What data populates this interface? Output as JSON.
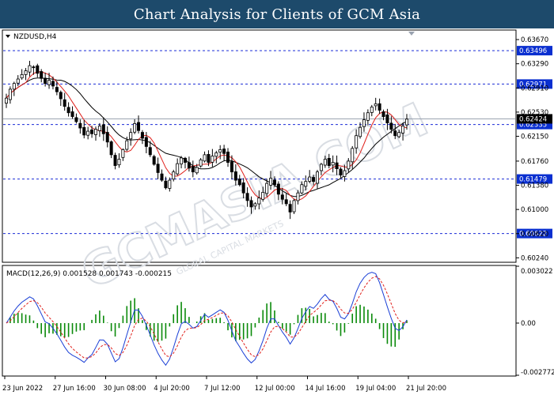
{
  "banner": {
    "title": "Chart Analysis for Clients of GCM Asia"
  },
  "watermark": {
    "text": "GCMASIA.COM",
    "subtext": "GLOBAL CAPITAL MARKETS",
    "color": "#d9dde3"
  },
  "chart_data": {
    "type": "candlestick",
    "symbol_label": "NZDUSD,H4",
    "price_axis": {
      "ylim": [
        0.6017,
        0.6382
      ],
      "ticks": [
        "0.63670",
        "0.63290",
        "0.62910",
        "0.62530",
        "0.62150",
        "0.61760",
        "0.61380",
        "0.61000",
        "0.60620",
        "0.60240"
      ],
      "tick_values": [
        0.6367,
        0.6329,
        0.6291,
        0.6253,
        0.6215,
        0.6176,
        0.6138,
        0.61,
        0.6062,
        0.6024
      ]
    },
    "current_price": {
      "label": "0.62424",
      "value": 0.62424
    },
    "levels": [
      {
        "label": "0.63496",
        "value": 0.63496
      },
      {
        "label": "0.62971",
        "value": 0.62971
      },
      {
        "label": "0.62335",
        "value": 0.62335
      },
      {
        "label": "0.61479",
        "value": 0.61479
      },
      {
        "label": "0.60622",
        "value": 0.60622
      }
    ],
    "time_labels": [
      "23 Jun 2022",
      "27 Jun 16:00",
      "30 Jun 08:00",
      "4 Jul 20:00",
      "7 Jul 12:00",
      "12 Jul 00:00",
      "14 Jul 16:00",
      "19 Jul 04:00",
      "21 Jul 20:00"
    ],
    "close_prices": [
      0.6275,
      0.6289,
      0.6298,
      0.6305,
      0.6312,
      0.6318,
      0.6326,
      0.6323,
      0.6314,
      0.6306,
      0.6298,
      0.6303,
      0.6294,
      0.6285,
      0.6274,
      0.6262,
      0.6252,
      0.6246,
      0.6238,
      0.6228,
      0.6217,
      0.6223,
      0.6219,
      0.6226,
      0.6231,
      0.6219,
      0.6206,
      0.6186,
      0.6169,
      0.6179,
      0.6194,
      0.6208,
      0.6221,
      0.6235,
      0.6224,
      0.6212,
      0.6199,
      0.6186,
      0.6171,
      0.6158,
      0.6146,
      0.6134,
      0.6146,
      0.6159,
      0.6172,
      0.6181,
      0.6174,
      0.6165,
      0.6159,
      0.6166,
      0.6178,
      0.6186,
      0.6174,
      0.6184,
      0.6189,
      0.6194,
      0.6188,
      0.6174,
      0.6159,
      0.6146,
      0.6139,
      0.6126,
      0.6114,
      0.6104,
      0.6109,
      0.6118,
      0.6127,
      0.6141,
      0.6149,
      0.6139,
      0.6124,
      0.6116,
      0.6109,
      0.6096,
      0.6114,
      0.6126,
      0.6139,
      0.6144,
      0.6151,
      0.6144,
      0.6159,
      0.6171,
      0.6179,
      0.6169,
      0.6174,
      0.6164,
      0.6154,
      0.6161,
      0.6176,
      0.6196,
      0.6216,
      0.6229,
      0.6241,
      0.6252,
      0.6261,
      0.6266,
      0.6256,
      0.6246,
      0.6236,
      0.6226,
      0.6216,
      0.6221,
      0.6231,
      0.6242
    ],
    "candle_range": [
      0.6061,
      0.6328
    ],
    "ma_fast_range": [
      0.611,
      0.631
    ],
    "ma_slow_range": [
      0.614,
      0.63
    ],
    "macd": {
      "label": "MACD(12,26,9) 0.001528 0.001743 -0.000215",
      "ylim": [
        -0.002772,
        0.003022
      ],
      "ticks": [
        "0.003022",
        "0.00",
        "-0.002772"
      ],
      "histogram_color": "#0a8a0a",
      "main_color": "#1a3fd6",
      "signal_color": "#e0201b"
    },
    "colors": {
      "bull": "#ffffff",
      "bear": "#000000",
      "ma_fast": "#e0201b",
      "ma_slow": "#000000",
      "level": "#1a2bd6"
    }
  }
}
